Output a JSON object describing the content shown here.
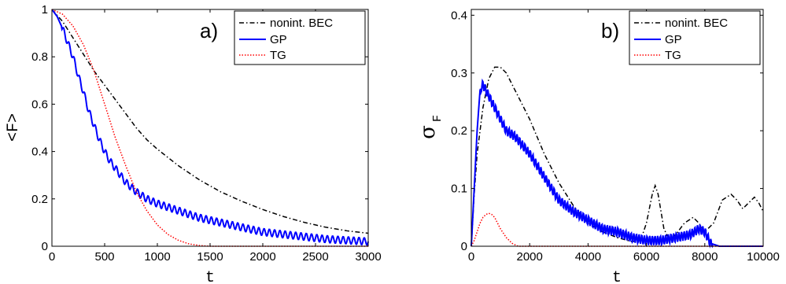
{
  "chart_data": [
    {
      "type": "line",
      "panel_label": "a)",
      "xlabel": "t",
      "ylabel": "<F>",
      "xlim": [
        0,
        3000
      ],
      "ylim": [
        0,
        1
      ],
      "xticks": [
        "0",
        "500",
        "1000",
        "1500",
        "2000",
        "2500",
        "3000"
      ],
      "yticks": [
        "0",
        "0.2",
        "0.4",
        "0.6",
        "0.8",
        "1"
      ],
      "legend_position": "top-right",
      "series": [
        {
          "name": "nonint. BEC",
          "color": "#000000",
          "style": "dashdot",
          "x": [
            0,
            100,
            200,
            300,
            400,
            500,
            600,
            700,
            800,
            900,
            1000,
            1200,
            1400,
            1600,
            1800,
            2000,
            2200,
            2400,
            2600,
            2800,
            3000
          ],
          "y": [
            1.0,
            0.95,
            0.88,
            0.81,
            0.74,
            0.68,
            0.62,
            0.56,
            0.5,
            0.45,
            0.41,
            0.34,
            0.28,
            0.23,
            0.19,
            0.155,
            0.125,
            0.1,
            0.08,
            0.065,
            0.055
          ]
        },
        {
          "name": "GP",
          "color": "#0000ff",
          "style": "solid",
          "x": [
            0,
            50,
            100,
            150,
            200,
            250,
            300,
            350,
            400,
            450,
            500,
            550,
            600,
            650,
            700,
            750,
            800,
            900,
            1000,
            1200,
            1400,
            1600,
            1800,
            2000,
            2200,
            2400,
            2600,
            2800,
            3000
          ],
          "y": [
            1.0,
            0.97,
            0.92,
            0.86,
            0.8,
            0.72,
            0.65,
            0.57,
            0.51,
            0.45,
            0.4,
            0.36,
            0.33,
            0.3,
            0.27,
            0.25,
            0.23,
            0.2,
            0.18,
            0.15,
            0.12,
            0.1,
            0.08,
            0.06,
            0.05,
            0.04,
            0.03,
            0.025,
            0.02
          ],
          "oscillation_amplitude": 0.015
        },
        {
          "name": "TG",
          "color": "#ff0000",
          "style": "dotted",
          "x": [
            0,
            100,
            200,
            300,
            400,
            500,
            600,
            700,
            800,
            900,
            1000,
            1100,
            1200,
            1300,
            1400,
            1500,
            3000
          ],
          "y": [
            1.0,
            0.98,
            0.93,
            0.85,
            0.74,
            0.6,
            0.46,
            0.34,
            0.23,
            0.15,
            0.09,
            0.05,
            0.025,
            0.01,
            0.003,
            0.0,
            0.0
          ]
        }
      ]
    },
    {
      "type": "line",
      "panel_label": "b)",
      "xlabel": "t",
      "ylabel": "σ",
      "ylabel_subscript": "F",
      "xlim": [
        0,
        10000
      ],
      "ylim": [
        0,
        0.41
      ],
      "xticks": [
        "0",
        "2000",
        "4000",
        "6000",
        "8000",
        "10000"
      ],
      "yticks": [
        "0",
        "0.1",
        "0.2",
        "0.3",
        "0.4"
      ],
      "legend_position": "top-right",
      "series": [
        {
          "name": "nonint. BEC",
          "color": "#000000",
          "style": "dashdot",
          "x": [
            0,
            100,
            200,
            400,
            600,
            800,
            1000,
            1200,
            1500,
            2000,
            2500,
            3000,
            3500,
            4000,
            4500,
            5000,
            5500,
            5800,
            6000,
            6200,
            6300,
            6400,
            6600,
            6800,
            7000,
            7300,
            7600,
            7800,
            8000,
            8300,
            8600,
            8900,
            9100,
            9300,
            9500,
            9700,
            9850,
            10000
          ],
          "y": [
            0.0,
            0.09,
            0.16,
            0.24,
            0.29,
            0.31,
            0.31,
            0.3,
            0.27,
            0.22,
            0.16,
            0.11,
            0.07,
            0.04,
            0.025,
            0.015,
            0.008,
            0.01,
            0.04,
            0.09,
            0.105,
            0.09,
            0.03,
            0.01,
            0.02,
            0.04,
            0.05,
            0.04,
            0.025,
            0.04,
            0.08,
            0.09,
            0.08,
            0.065,
            0.075,
            0.085,
            0.075,
            0.06
          ]
        },
        {
          "name": "GP",
          "color": "#0000ff",
          "style": "solid",
          "x": [
            0,
            100,
            200,
            300,
            400,
            500,
            600,
            800,
            1000,
            1200,
            1500,
            2000,
            2500,
            3000,
            3500,
            4000,
            4500,
            5000,
            5500,
            6000,
            6500,
            7000,
            7500,
            7800,
            8000,
            8200,
            8500,
            9000,
            10000
          ],
          "y": [
            0.0,
            0.1,
            0.2,
            0.27,
            0.28,
            0.27,
            0.26,
            0.24,
            0.22,
            0.2,
            0.19,
            0.16,
            0.12,
            0.08,
            0.06,
            0.045,
            0.03,
            0.025,
            0.015,
            0.01,
            0.01,
            0.015,
            0.02,
            0.03,
            0.025,
            0.005,
            0.0,
            0.0,
            0.0
          ],
          "oscillation_amplitude": 0.008
        },
        {
          "name": "TG",
          "color": "#ff0000",
          "style": "dotted",
          "x": [
            0,
            100,
            200,
            300,
            400,
            500,
            600,
            700,
            800,
            900,
            1000,
            1200,
            1400,
            1600,
            10000
          ],
          "y": [
            0.0,
            0.01,
            0.025,
            0.04,
            0.05,
            0.055,
            0.057,
            0.055,
            0.05,
            0.04,
            0.03,
            0.015,
            0.005,
            0.0,
            0.0
          ]
        }
      ]
    }
  ]
}
